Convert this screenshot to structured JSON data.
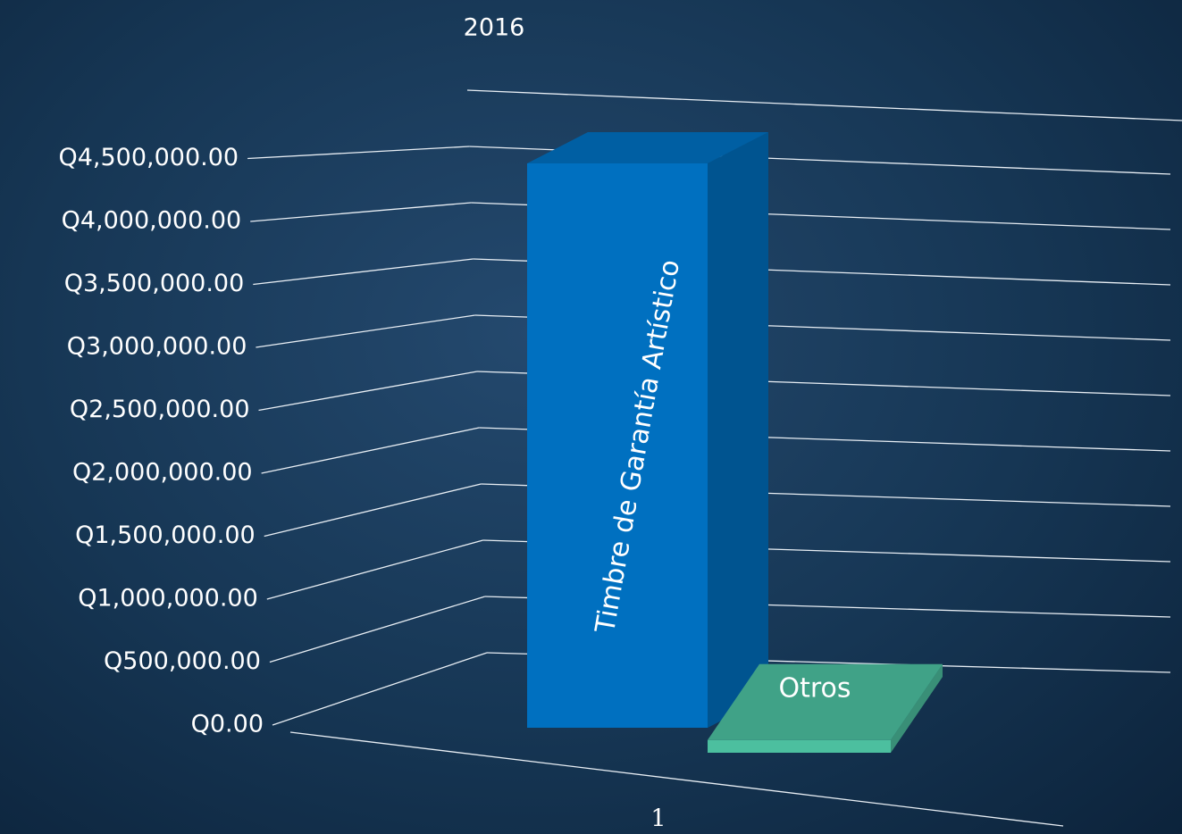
{
  "chart_data": {
    "type": "bar3d",
    "title": "2016",
    "categories": [
      "1"
    ],
    "series": [
      {
        "name": "Timbre de Garantía Artístico",
        "color": "#0070c0",
        "values": [
          4450000
        ]
      },
      {
        "name": "Otros",
        "color": "#4cbf9f",
        "values": [
          100000
        ]
      }
    ],
    "ylim": [
      0,
      5000000
    ],
    "yticks": [
      {
        "value": 0,
        "label": "Q0.00"
      },
      {
        "value": 500000,
        "label": "Q500,000.00"
      },
      {
        "value": 1000000,
        "label": "Q1,000,000.00"
      },
      {
        "value": 1500000,
        "label": "Q1,500,000.00"
      },
      {
        "value": 2000000,
        "label": "Q2,000,000.00"
      },
      {
        "value": 2500000,
        "label": "Q2,500,000.00"
      },
      {
        "value": 3000000,
        "label": "Q3,000,000.00"
      },
      {
        "value": 3500000,
        "label": "Q3,500,000.00"
      },
      {
        "value": 4000000,
        "label": "Q4,000,000.00"
      },
      {
        "value": 4500000,
        "label": "Q4,500,000.00"
      }
    ],
    "grid": true
  }
}
